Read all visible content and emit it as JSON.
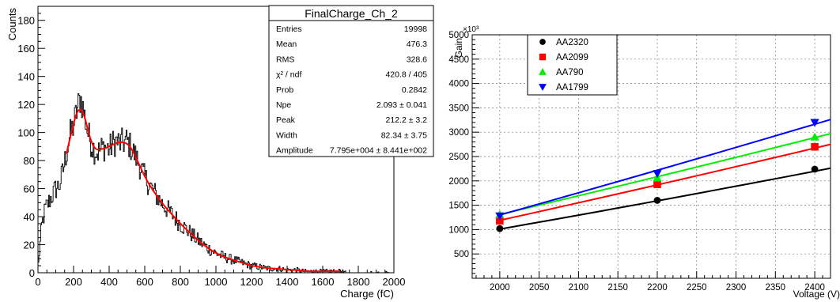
{
  "chart_data": [
    {
      "type": "histogram",
      "title": "FinalCharge_Ch_2",
      "xlabel": "Charge (fC)",
      "ylabel": "Counts",
      "xlim": [
        0,
        2000
      ],
      "ylim": [
        0,
        190
      ],
      "xticks": [
        0,
        200,
        400,
        600,
        800,
        1000,
        1200,
        1400,
        1600,
        1800,
        2000
      ],
      "yticks": [
        0,
        20,
        40,
        60,
        80,
        100,
        120,
        140,
        160,
        180
      ],
      "grid": false,
      "stats": [
        {
          "label": "Entries",
          "value": "19998"
        },
        {
          "label": "Mean",
          "value": "476.3"
        },
        {
          "label": "RMS",
          "value": "328.6"
        },
        {
          "label": "χ² / ndf",
          "value": "420.8 / 405"
        },
        {
          "label": "Prob",
          "value": "0.2842"
        },
        {
          "label": "Npe",
          "value": "2.093 ± 0.041"
        },
        {
          "label": "Peak",
          "value": "212.2 ± 3.2"
        },
        {
          "label": "Width",
          "value": "82.34 ± 3.75"
        },
        {
          "label": "Amplitude",
          "value": "7.795e+004 ± 8.441e+002"
        }
      ],
      "histogram_envelope": {
        "x": [
          0,
          20,
          40,
          60,
          80,
          100,
          120,
          140,
          160,
          180,
          200,
          220,
          240,
          260,
          280,
          300,
          320,
          340,
          360,
          380,
          400,
          420,
          440,
          460,
          480,
          500,
          520,
          540,
          560,
          580,
          600,
          650,
          700,
          750,
          800,
          850,
          900,
          950,
          1000,
          1050,
          1100,
          1150,
          1200,
          1250,
          1300,
          1350,
          1400,
          1450,
          1500,
          1550,
          1600,
          1650,
          1700,
          1750,
          1800,
          1850,
          1900,
          1950,
          2000
        ],
        "y": [
          3,
          32,
          45,
          50,
          55,
          60,
          62,
          72,
          85,
          98,
          105,
          116,
          125,
          113,
          100,
          92,
          87,
          86,
          89,
          90,
          88,
          92,
          94,
          92,
          93,
          94,
          90,
          85,
          80,
          74,
          68,
          58,
          49,
          42,
          35,
          29,
          23,
          18,
          14,
          11,
          9,
          7,
          5,
          4,
          3,
          3,
          2,
          2,
          1,
          1,
          1,
          1,
          1,
          0,
          0,
          0,
          0,
          0,
          0
        ]
      },
      "fit_color": "#ff0000",
      "hist_color": "#000000"
    },
    {
      "type": "scatter",
      "xlabel": "Voltage (V)",
      "ylabel": "Gain",
      "y_exponent_label": "×10³",
      "xlim": [
        1965,
        2420
      ],
      "ylim": [
        0,
        5000
      ],
      "xticks": [
        2000,
        2050,
        2100,
        2150,
        2200,
        2250,
        2300,
        2350,
        2400
      ],
      "yticks": [
        500,
        1000,
        1500,
        2000,
        2500,
        3000,
        3500,
        4000,
        4500,
        5000
      ],
      "grid": true,
      "legend_position": "top-left",
      "series": [
        {
          "name": "AA2320",
          "color": "#000000",
          "marker": "circle",
          "x": [
            2000,
            2200,
            2400
          ],
          "y": [
            1020,
            1600,
            2240
          ],
          "fit": {
            "x": [
              2000,
              2420
            ],
            "y": [
              1010,
              2260
            ]
          }
        },
        {
          "name": "AA2099",
          "color": "#ff0000",
          "marker": "square",
          "x": [
            2000,
            2200,
            2400
          ],
          "y": [
            1180,
            1930,
            2700
          ],
          "fit": {
            "x": [
              2000,
              2420
            ],
            "y": [
              1190,
              2750
            ]
          }
        },
        {
          "name": "AA790",
          "color": "#00ee00",
          "marker": "triangle-up",
          "x": [
            2000,
            2200,
            2400
          ],
          "y": [
            1310,
            2060,
            2900
          ],
          "fit": {
            "x": [
              2000,
              2420
            ],
            "y": [
              1310,
              2970
            ]
          }
        },
        {
          "name": "AA1799",
          "color": "#0000ff",
          "marker": "triangle-down",
          "x": [
            2000,
            2200,
            2400
          ],
          "y": [
            1280,
            2150,
            3200
          ],
          "fit": {
            "x": [
              2000,
              2420
            ],
            "y": [
              1300,
              3260
            ]
          }
        }
      ]
    }
  ]
}
